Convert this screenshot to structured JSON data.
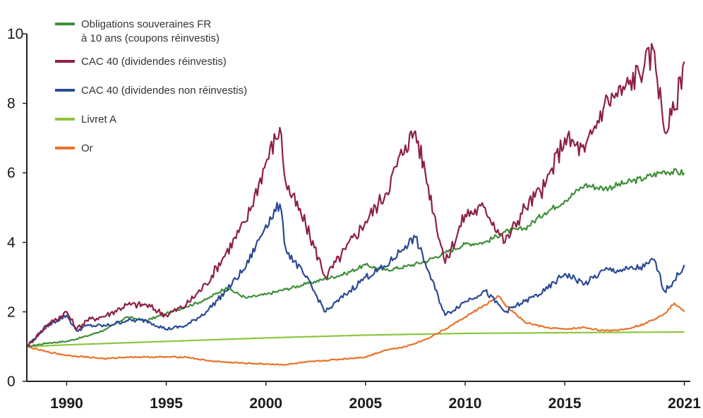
{
  "chart_data": {
    "type": "line",
    "title": "",
    "xlabel": "",
    "ylabel": "",
    "xlim": [
      1988,
      2021.3
    ],
    "ylim": [
      0,
      10
    ],
    "x_ticks": [
      1990,
      1995,
      2000,
      2005,
      2010,
      2015,
      2021
    ],
    "y_ticks": [
      0,
      2,
      4,
      6,
      8,
      10
    ],
    "grid": false,
    "legend_position": "top-left",
    "series": [
      {
        "name": "Obligations souveraines FR à 10 ans (coupons réinvestis)",
        "legend_lines": [
          "Obligations souveraines FR",
          "à 10 ans (coupons réinvestis)"
        ],
        "color": "#3f8f3a",
        "x": [
          1988,
          1989,
          1990,
          1991,
          1992,
          1993,
          1994,
          1995,
          1996,
          1997,
          1998,
          1999,
          2000,
          2001,
          2002,
          2003,
          2004,
          2005,
          2006,
          2007,
          2008,
          2009,
          2010,
          2011,
          2012,
          2013,
          2014,
          2015,
          2016,
          2017,
          2018,
          2019,
          2020,
          2021
        ],
        "values": [
          1.0,
          1.1,
          1.15,
          1.3,
          1.5,
          1.85,
          1.75,
          1.95,
          2.15,
          2.35,
          2.7,
          2.4,
          2.5,
          2.65,
          2.8,
          2.95,
          3.1,
          3.35,
          3.2,
          3.3,
          3.45,
          3.7,
          3.95,
          4.0,
          4.3,
          4.4,
          4.85,
          5.2,
          5.65,
          5.55,
          5.7,
          5.85,
          6.05,
          6.0
        ]
      },
      {
        "name": "CAC 40 (dividendes réinvestis)",
        "legend_lines": [
          "CAC 40 (dividendes réinvestis)"
        ],
        "color": "#8e2044",
        "x": [
          1988,
          1989,
          1990,
          1990.5,
          1991,
          1992,
          1993,
          1994,
          1995,
          1996,
          1997,
          1998,
          1999,
          2000,
          2000.7,
          2001,
          2002,
          2003,
          2004,
          2005,
          2006,
          2007,
          2007.5,
          2008,
          2009,
          2010,
          2011,
          2012,
          2013,
          2014,
          2015,
          2016,
          2017,
          2018,
          2019,
          2019.5,
          2020,
          2020.5,
          2021
        ],
        "values": [
          1.0,
          1.6,
          2.0,
          1.5,
          1.75,
          1.9,
          2.2,
          2.2,
          1.9,
          2.2,
          2.8,
          3.7,
          4.6,
          6.3,
          7.3,
          5.7,
          4.5,
          3.0,
          3.8,
          4.6,
          5.4,
          6.8,
          7.2,
          6.0,
          3.4,
          4.8,
          5.0,
          4.0,
          5.0,
          5.6,
          7.0,
          6.6,
          8.0,
          8.4,
          9.1,
          9.5,
          7.2,
          7.8,
          9.2
        ]
      },
      {
        "name": "CAC 40 (dividendes non réinvestis)",
        "legend_lines": [
          "CAC 40 (dividendes non réinvestis)"
        ],
        "color": "#2b4a93",
        "x": [
          1988,
          1989,
          1990,
          1990.5,
          1991,
          1992,
          1993,
          1994,
          1995,
          1996,
          1997,
          1998,
          1999,
          2000,
          2000.7,
          2001,
          2002,
          2003,
          2004,
          2005,
          2006,
          2007,
          2007.5,
          2008,
          2009,
          2010,
          2011,
          2012,
          2013,
          2014,
          2015,
          2016,
          2017,
          2018,
          2019,
          2019.5,
          2020,
          2020.5,
          2021
        ],
        "values": [
          1.0,
          1.6,
          1.9,
          1.45,
          1.6,
          1.6,
          1.75,
          1.75,
          1.5,
          1.6,
          2.0,
          2.6,
          3.3,
          4.5,
          5.1,
          3.8,
          3.0,
          2.0,
          2.5,
          3.0,
          3.3,
          3.9,
          4.15,
          3.4,
          1.9,
          2.3,
          2.6,
          2.0,
          2.3,
          2.6,
          3.1,
          2.8,
          3.2,
          3.2,
          3.3,
          3.5,
          2.6,
          2.9,
          3.35
        ]
      },
      {
        "name": "Livret A",
        "legend_lines": [
          "Livret A"
        ],
        "color": "#8dc640",
        "x": [
          1988,
          1990,
          1995,
          2000,
          2005,
          2010,
          2015,
          2021
        ],
        "values": [
          1.0,
          1.05,
          1.15,
          1.25,
          1.33,
          1.38,
          1.4,
          1.42
        ]
      },
      {
        "name": "Or",
        "legend_lines": [
          "Or"
        ],
        "color": "#e8732a",
        "x": [
          1988,
          1989,
          1990,
          1991,
          1992,
          1993,
          1994,
          1995,
          1996,
          1997,
          1998,
          1999,
          2000,
          2001,
          2002,
          2003,
          2004,
          2005,
          2006,
          2007,
          2008,
          2009,
          2010,
          2011,
          2011.7,
          2012,
          2013,
          2014,
          2015,
          2016,
          2017,
          2018,
          2019,
          2020,
          2020.5,
          2021
        ],
        "values": [
          1.0,
          0.85,
          0.75,
          0.7,
          0.65,
          0.7,
          0.7,
          0.7,
          0.7,
          0.6,
          0.55,
          0.52,
          0.5,
          0.48,
          0.55,
          0.6,
          0.65,
          0.7,
          0.9,
          1.0,
          1.2,
          1.5,
          1.85,
          2.2,
          2.45,
          2.2,
          1.7,
          1.55,
          1.5,
          1.55,
          1.45,
          1.5,
          1.65,
          1.95,
          2.25,
          2.0
        ]
      }
    ]
  }
}
